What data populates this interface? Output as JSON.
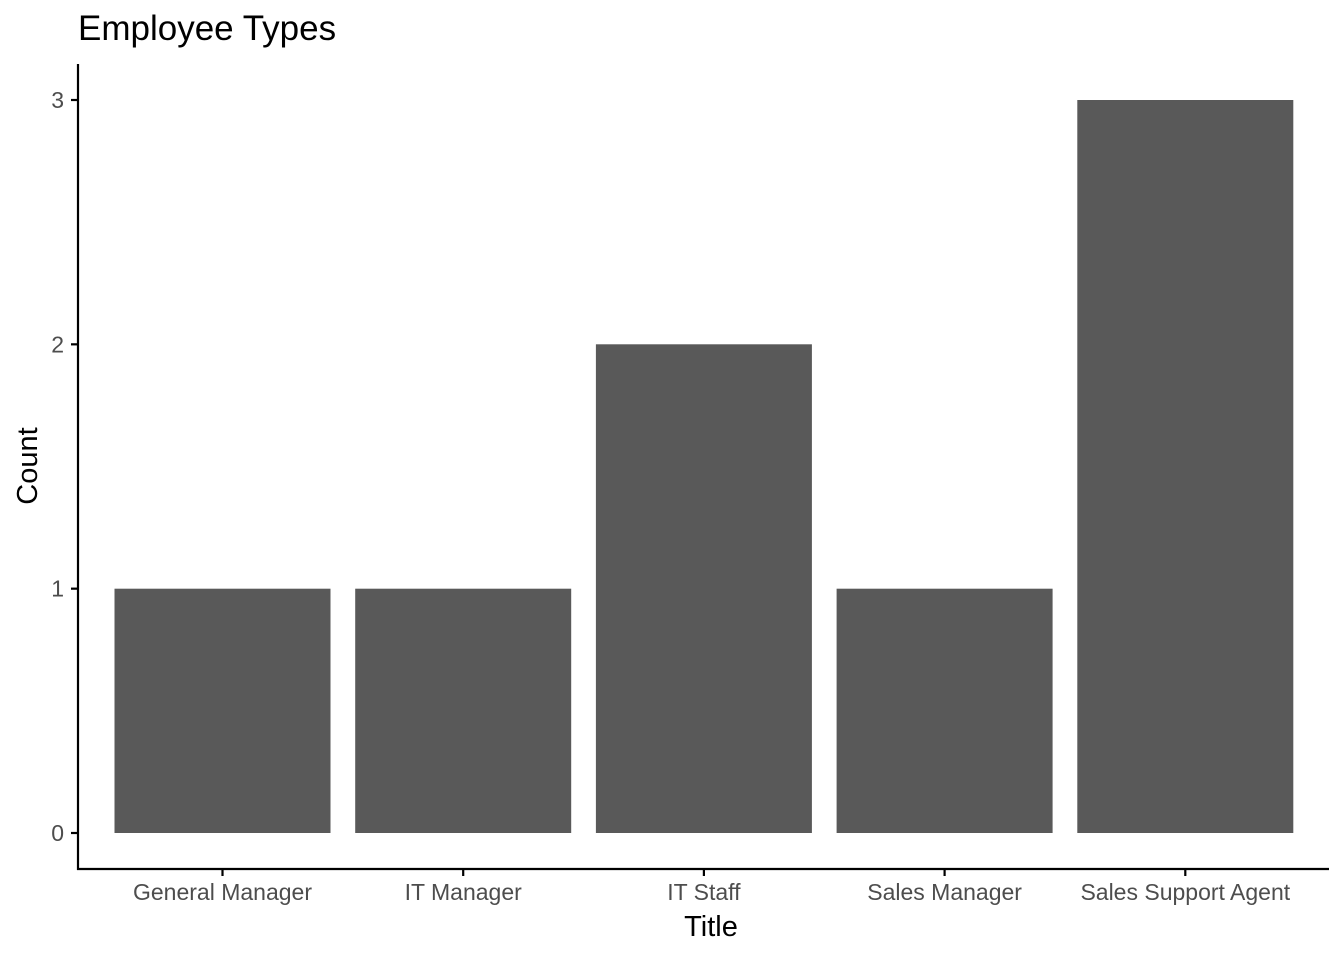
{
  "chart_data": {
    "type": "bar",
    "title": "Employee Types",
    "xlabel": "Title",
    "ylabel": "Count",
    "categories": [
      "General Manager",
      "IT Manager",
      "IT Staff",
      "Sales Manager",
      "Sales Support Agent"
    ],
    "values": [
      1,
      1,
      2,
      1,
      3
    ],
    "ylim": [
      0,
      3
    ],
    "yticks": [
      0,
      1,
      2,
      3
    ],
    "grid": false,
    "legend": "none",
    "bar_color": "#595959",
    "axis_color": "#000000",
    "tick_label_color": "#4d4d4d"
  }
}
